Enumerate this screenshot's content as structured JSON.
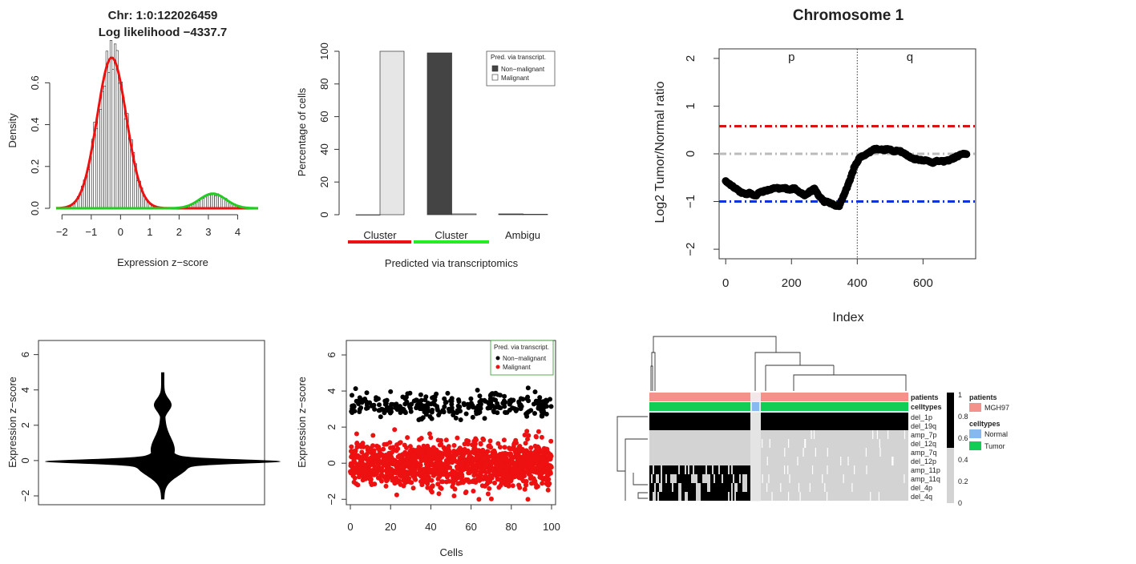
{
  "chart_data": [
    {
      "id": "density",
      "type": "histogram",
      "title": [
        "Chr: 1:0:122026459",
        "Log likelihood −4337.7"
      ],
      "xlabel": "Expression z−score",
      "ylabel": "Density",
      "xlim": [
        -2.2,
        4.7
      ],
      "ylim": [
        0,
        0.72
      ],
      "xticks": [
        -2,
        -1,
        0,
        1,
        2,
        3,
        4
      ],
      "xtick_labels": [
        "−2",
        "−1",
        "0",
        "1",
        "2",
        "3",
        "4"
      ],
      "yticks": [
        0,
        0.2,
        0.4,
        0.6
      ],
      "ytick_labels": [
        "0.0",
        "0.2",
        "0.4",
        "0.6"
      ],
      "components": [
        {
          "color": "#ee1111",
          "mean": -0.3,
          "sd": 0.5,
          "peak": 0.72
        },
        {
          "color": "#22cc22",
          "mean": 3.15,
          "sd": 0.45,
          "peak": 0.07
        }
      ]
    },
    {
      "id": "barplot",
      "type": "bar",
      "xlabel": "Predicted via transcriptomics",
      "ylabel": "Percentage of cells",
      "ylim": [
        0,
        100
      ],
      "yticks": [
        0,
        20,
        40,
        60,
        80,
        100
      ],
      "categories": [
        "Cluster",
        "Cluster",
        "Ambigu"
      ],
      "category_colors": [
        "#ee1111",
        "#22ee22",
        ""
      ],
      "series": [
        {
          "name": "Non−malignant",
          "color": "#444444",
          "values": [
            0,
            99,
            0.5
          ]
        },
        {
          "name": "Malignant",
          "color": "#e6e6e6",
          "values": [
            100,
            0.5,
            0.3
          ]
        }
      ],
      "legend_title": "Pred. via transcript.",
      "legend_position": "top-right"
    },
    {
      "id": "chromosome",
      "type": "line",
      "title": "Chromosome 1",
      "xlabel": "Index",
      "ylabel": "Log2 Tumor/Normal ratio",
      "xlim": [
        -20,
        760
      ],
      "ylim": [
        -2.2,
        2.2
      ],
      "xticks": [
        0,
        200,
        400,
        600
      ],
      "yticks": [
        -2,
        -1,
        0,
        1,
        2
      ],
      "ytick_labels": [
        "−2",
        "−1",
        "0",
        "1",
        "2"
      ],
      "arm_labels": [
        "p",
        "q"
      ],
      "centromere_x": 400,
      "thresholds": [
        {
          "y": 0.58,
          "color": "#dd1111"
        },
        {
          "y": 0,
          "color": "#bbbbbb"
        },
        {
          "y": -1,
          "color": "#1133dd"
        }
      ],
      "points": [
        [
          0,
          -0.57
        ],
        [
          15,
          -0.65
        ],
        [
          30,
          -0.72
        ],
        [
          45,
          -0.8
        ],
        [
          60,
          -0.85
        ],
        [
          75,
          -0.82
        ],
        [
          90,
          -0.88
        ],
        [
          105,
          -0.8
        ],
        [
          120,
          -0.78
        ],
        [
          135,
          -0.75
        ],
        [
          150,
          -0.72
        ],
        [
          165,
          -0.73
        ],
        [
          180,
          -0.72
        ],
        [
          195,
          -0.75
        ],
        [
          210,
          -0.72
        ],
        [
          225,
          -0.8
        ],
        [
          240,
          -0.87
        ],
        [
          255,
          -0.8
        ],
        [
          270,
          -0.73
        ],
        [
          285,
          -0.9
        ],
        [
          300,
          -1.0
        ],
        [
          315,
          -1.02
        ],
        [
          330,
          -1.08
        ],
        [
          345,
          -1.1
        ],
        [
          360,
          -0.85
        ],
        [
          375,
          -0.6
        ],
        [
          390,
          -0.3
        ],
        [
          405,
          -0.1
        ],
        [
          420,
          -0.03
        ],
        [
          435,
          0.02
        ],
        [
          450,
          0.1
        ],
        [
          465,
          0.1
        ],
        [
          480,
          0.08
        ],
        [
          495,
          0.1
        ],
        [
          510,
          0.05
        ],
        [
          525,
          0.08
        ],
        [
          540,
          0.02
        ],
        [
          555,
          -0.05
        ],
        [
          570,
          -0.1
        ],
        [
          585,
          -0.12
        ],
        [
          600,
          -0.13
        ],
        [
          615,
          -0.15
        ],
        [
          630,
          -0.18
        ],
        [
          645,
          -0.15
        ],
        [
          660,
          -0.16
        ],
        [
          675,
          -0.14
        ],
        [
          690,
          -0.1
        ],
        [
          705,
          -0.05
        ],
        [
          720,
          0.0
        ],
        [
          735,
          -0.02
        ]
      ]
    },
    {
      "id": "violin",
      "type": "violin",
      "ylabel": "Expression z−score",
      "ylim": [
        -2.5,
        6.8
      ],
      "yticks": [
        -2,
        0,
        2,
        4,
        6
      ],
      "ytick_labels": [
        "−2",
        "0",
        "2",
        "4",
        "6"
      ],
      "range": [
        -2.2,
        5.0
      ]
    },
    {
      "id": "scatter",
      "type": "scatter",
      "xlabel": "Cells",
      "ylabel": "Expression z−score",
      "xlim": [
        -2,
        102
      ],
      "ylim": [
        -2.3,
        6.8
      ],
      "xticks": [
        0,
        20,
        40,
        60,
        80,
        100
      ],
      "yticks": [
        -2,
        0,
        2,
        4,
        6
      ],
      "ytick_labels": [
        "−2",
        "0",
        "2",
        "4",
        "6"
      ],
      "legend_title": "Pred. via transcript.",
      "legend_position": "top-right",
      "series": [
        {
          "name": "Non−malignant",
          "color": "#000000",
          "mean": 3.2,
          "sd": 0.35,
          "count": 300
        },
        {
          "name": "Malignant",
          "color": "#ee1111",
          "mean": -0.1,
          "sd": 0.6,
          "count": 1400
        }
      ]
    },
    {
      "id": "heatmap",
      "type": "heatmap",
      "rows": [
        "del_1p",
        "del_19q",
        "amp_7p",
        "del_12q",
        "amp_7q",
        "del_12p",
        "amp_11p",
        "amp_11q",
        "del_4p",
        "del_4q"
      ],
      "annotation_rows": [
        "patients",
        "celltypes"
      ],
      "annotation_colors": {
        "patients": "#f4918a",
        "normal": "#88b8f0",
        "tumor": "#11cc55"
      },
      "color_low": "#d3d3d3",
      "color_high": "#000000",
      "colorbar_ticks": [
        "1",
        "0.8",
        "0.6",
        "0.4",
        "0.2",
        "0"
      ],
      "legend": [
        {
          "title": "patients",
          "items": [
            {
              "label": "MGH97",
              "color": "#f4918a"
            }
          ]
        },
        {
          "title": "celltypes",
          "items": [
            {
              "label": "Normal",
              "color": "#88b8f0"
            },
            {
              "label": "Tumor",
              "color": "#11cc55"
            }
          ]
        }
      ]
    }
  ]
}
